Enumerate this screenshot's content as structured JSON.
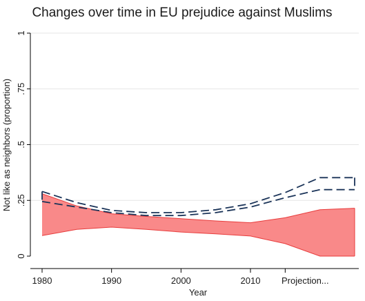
{
  "chart_data": {
    "type": "area",
    "title": "Changes over time in EU prejudice against Muslims",
    "xlabel": "Year",
    "ylabel": "Not like as neighbors (proportion)",
    "xlim": [
      1980,
      2015
    ],
    "ylim": [
      0,
      1
    ],
    "x_ticks": [
      1980,
      1990,
      2000,
      2010,
      2015
    ],
    "x_tick_labels": [
      "1980",
      "1990",
      "2000",
      "2010",
      "Projection..."
    ],
    "y_ticks": [
      0,
      0.25,
      0.5,
      0.75,
      1
    ],
    "y_tick_labels": [
      "0",
      ".25",
      ".5",
      ".75",
      "1"
    ],
    "grid": true,
    "colors": {
      "band_fill": "#f98989",
      "band_edge": "#e83c3c",
      "dashed_band": "#1a3358",
      "grid": "#e6e6e6",
      "axis": "#000000"
    },
    "series": [
      {
        "style": "filled-band",
        "x": [
          1980,
          1985,
          1990,
          1995,
          2000,
          2005,
          2010,
          2015,
          2020,
          2025
        ],
        "upper": [
          0.28,
          0.225,
          0.19,
          0.178,
          0.168,
          0.158,
          0.15,
          0.172,
          0.208,
          0.215
        ],
        "lower": [
          0.092,
          0.12,
          0.13,
          0.12,
          0.108,
          0.1,
          0.09,
          0.056,
          0.0,
          0.0
        ]
      },
      {
        "style": "dashed-band",
        "x": [
          1980,
          1985,
          1990,
          1995,
          2000,
          2005,
          2010,
          2015,
          2020,
          2025
        ],
        "upper": [
          0.29,
          0.24,
          0.205,
          0.195,
          0.195,
          0.208,
          0.235,
          0.285,
          0.352,
          0.352
        ],
        "lower": [
          0.245,
          0.22,
          0.195,
          0.182,
          0.182,
          0.195,
          0.22,
          0.262,
          0.298,
          0.298
        ]
      }
    ]
  }
}
